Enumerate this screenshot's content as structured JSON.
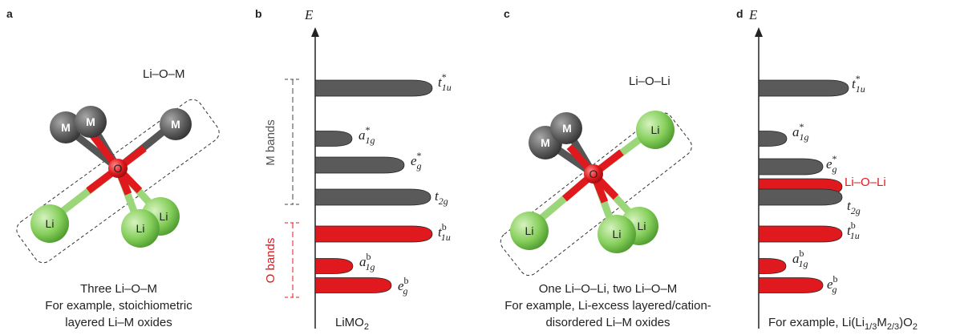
{
  "panels": {
    "a": {
      "letter": "a",
      "bond_label": "Li–O–M",
      "caption": [
        "Three Li–O–M",
        "For example, stoichiometric",
        "layered Li–M oxides"
      ],
      "atoms": {
        "M1": "M",
        "M2": "M",
        "M3": "M",
        "O": "O",
        "Li1": "Li",
        "Li2": "Li",
        "Li3": "Li"
      }
    },
    "b": {
      "letter": "b",
      "axis_label": "E",
      "m_bands_label": "M bands",
      "o_bands_label": "O bands",
      "bottom_label": "LiMO",
      "bottom_label_sub": "2",
      "levels": [
        {
          "main": "t",
          "sup": "*",
          "sub": "1u",
          "color": "gray"
        },
        {
          "main": "a",
          "sup": "*",
          "sub": "1g",
          "color": "gray"
        },
        {
          "main": "e",
          "sup": "*",
          "sub": "g",
          "color": "gray"
        },
        {
          "main": "t",
          "sup": "",
          "sub": "2g",
          "color": "gray"
        },
        {
          "main": "t",
          "sup": "b",
          "sub": "1u",
          "color": "red"
        },
        {
          "main": "a",
          "sup": "b",
          "sub": "1g",
          "color": "red"
        },
        {
          "main": "e",
          "sup": "b",
          "sub": "g",
          "color": "red"
        }
      ]
    },
    "c": {
      "letter": "c",
      "bond_label": "Li–O–Li",
      "caption": [
        "One Li–O–Li, two Li–O–M",
        "For example, Li-excess layered/cation-",
        "disordered Li–M oxides"
      ],
      "atoms": {
        "M1": "M",
        "M2": "M",
        "O": "O",
        "Li1": "Li",
        "Li2": "Li",
        "Li3": "Li",
        "Li4": "Li"
      }
    },
    "d": {
      "letter": "d",
      "axis_label": "E",
      "li_o_li_label": "Li–O–Li",
      "bottom_label_pre": "For example, Li(Li",
      "bottom_label_sub1": "1/3",
      "bottom_label_mid": "M",
      "bottom_label_sub2": "2/3",
      "bottom_label_post": ")O",
      "bottom_label_sub3": "2",
      "levels": [
        {
          "main": "t",
          "sup": "*",
          "sub": "1u",
          "color": "gray"
        },
        {
          "main": "a",
          "sup": "*",
          "sub": "1g",
          "color": "gray"
        },
        {
          "main": "e",
          "sup": "*",
          "sub": "g",
          "color": "gray"
        },
        {
          "main": "t",
          "sup": "",
          "sub": "2g",
          "color": "gray"
        },
        {
          "main": "t",
          "sup": "b",
          "sub": "1u",
          "color": "red"
        },
        {
          "main": "a",
          "sup": "b",
          "sub": "1g",
          "color": "red"
        },
        {
          "main": "e",
          "sup": "b",
          "sub": "g",
          "color": "red"
        }
      ]
    }
  },
  "colors": {
    "gray_band": "#5a5a5a",
    "red_band": "#e0191e",
    "li_green": "#8fd46a",
    "m_gray": "#6a6a6a",
    "o_red": "#e0191e"
  }
}
